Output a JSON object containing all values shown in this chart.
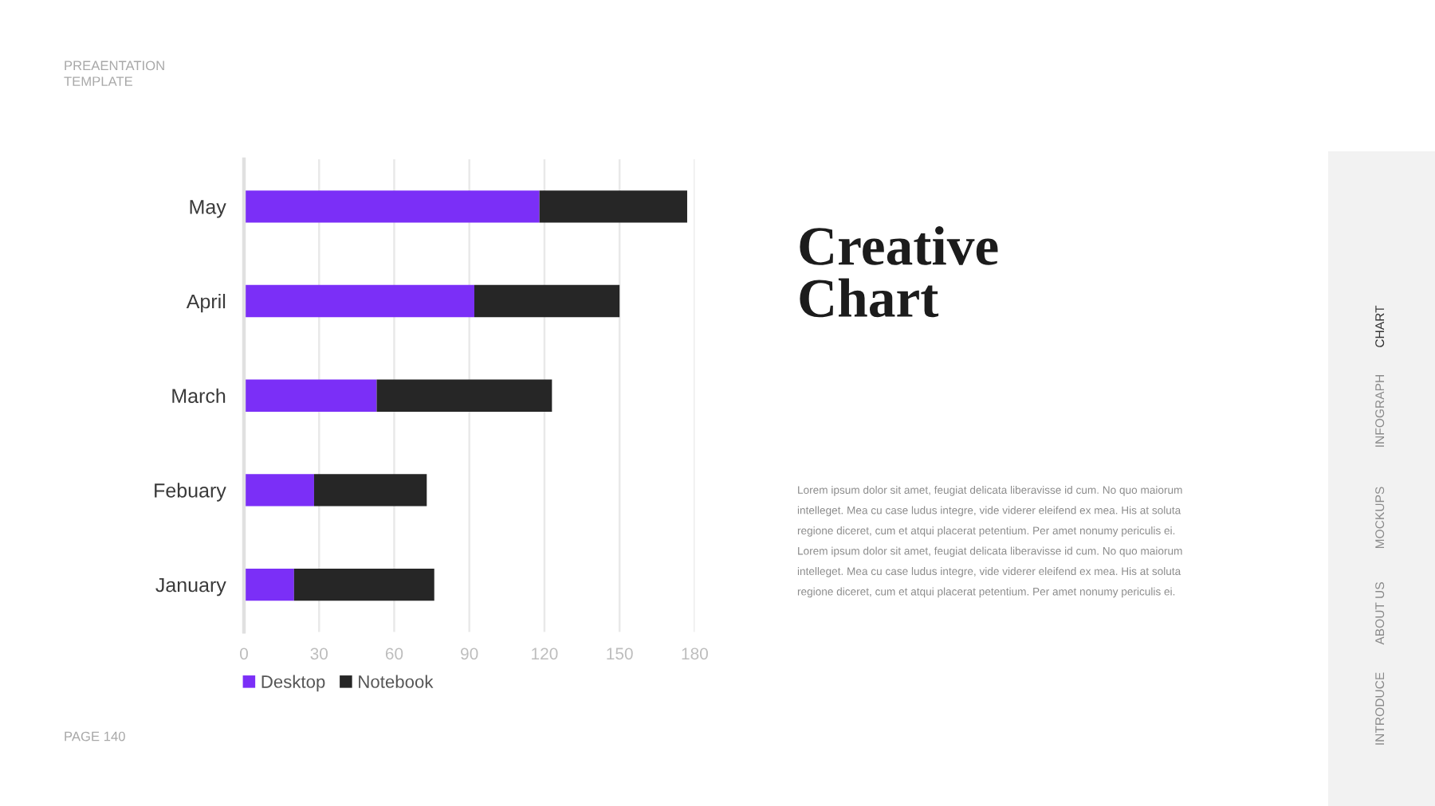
{
  "chart_data": {
    "type": "bar",
    "orientation": "horizontal",
    "stacked": true,
    "title": "Creative Chart",
    "categories": [
      "May",
      "April",
      "March",
      "Febuary",
      "January"
    ],
    "series": [
      {
        "name": "Desktop",
        "color": "#7b2ff7",
        "values": [
          118,
          92,
          53,
          28,
          20
        ]
      },
      {
        "name": "Notebook",
        "color": "#262626",
        "values": [
          59,
          58,
          70,
          45,
          56
        ]
      }
    ],
    "xlim": [
      0,
      180
    ],
    "xticks": [
      0,
      30,
      60,
      90,
      120,
      150,
      180
    ],
    "grid": "x",
    "legend": "bottom left",
    "annotations": [
      "PREAENTATION TEMPLATE",
      "Lorem ipsum dolor sit amet, feugiat delicata liberavisse id cum. No quo maiorum intelleget. Mea cu case ludus integre, vide viderer eleifend ex mea. His at soluta regione diceret, cum et atqui placerat petentium. Per amet nonumy periculis ei. Lorem ipsum dolor sit amet, feugiat delicata liberavisse id cum. No quo maiorum intelleget. Mea cu case ludus integre, vide viderer eleifend ex mea. His at soluta regione diceret, cum et atqui placerat petentium. Per amet nonumy periculis ei.",
      "CHART",
      "INFOGRAPH",
      "MOCKUPS",
      "ABOUT US",
      "INTRODUCE",
      "PAGE 140"
    ]
  }
}
